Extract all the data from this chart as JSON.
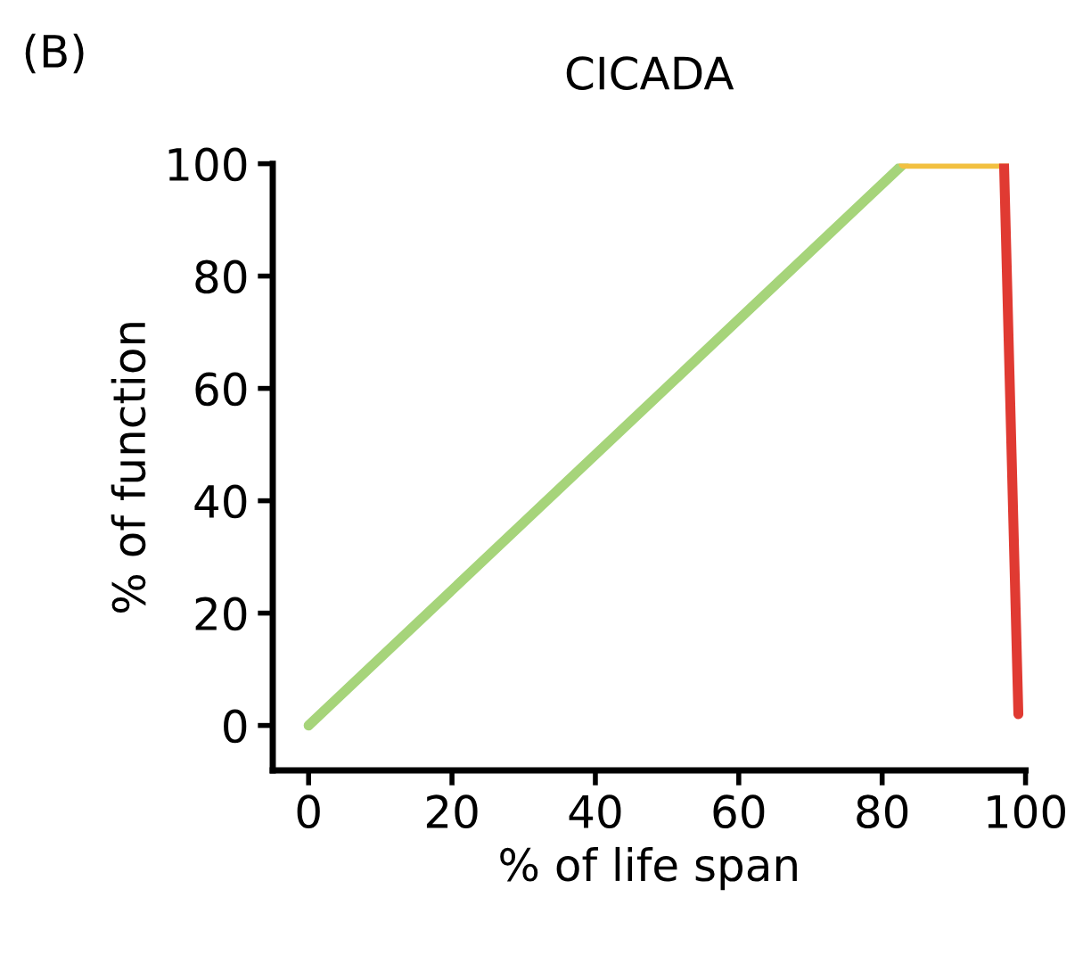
{
  "chart_data": {
    "type": "line",
    "title": "CICADA",
    "xlabel": "% of life span",
    "ylabel": "% of function",
    "annotations": [
      "(B)"
    ],
    "series": [
      {
        "color": "#a6d47a",
        "x": [
          0,
          83
        ],
        "values": [
          0,
          100
        ]
      },
      {
        "color": "#f2c040",
        "x": [
          83,
          97
        ],
        "values": [
          100,
          100
        ]
      },
      {
        "color": "#e03a32",
        "x": [
          97,
          99
        ],
        "values": [
          100,
          2
        ]
      }
    ],
    "xlim": [
      -5,
      100
    ],
    "ylim": [
      -8,
      100
    ],
    "xticks": [
      0,
      20,
      40,
      60,
      80,
      100
    ],
    "yticks": [
      0,
      20,
      40,
      60,
      80,
      100
    ],
    "grid": false,
    "legend": false,
    "marker": "none",
    "line_style": "solid"
  }
}
